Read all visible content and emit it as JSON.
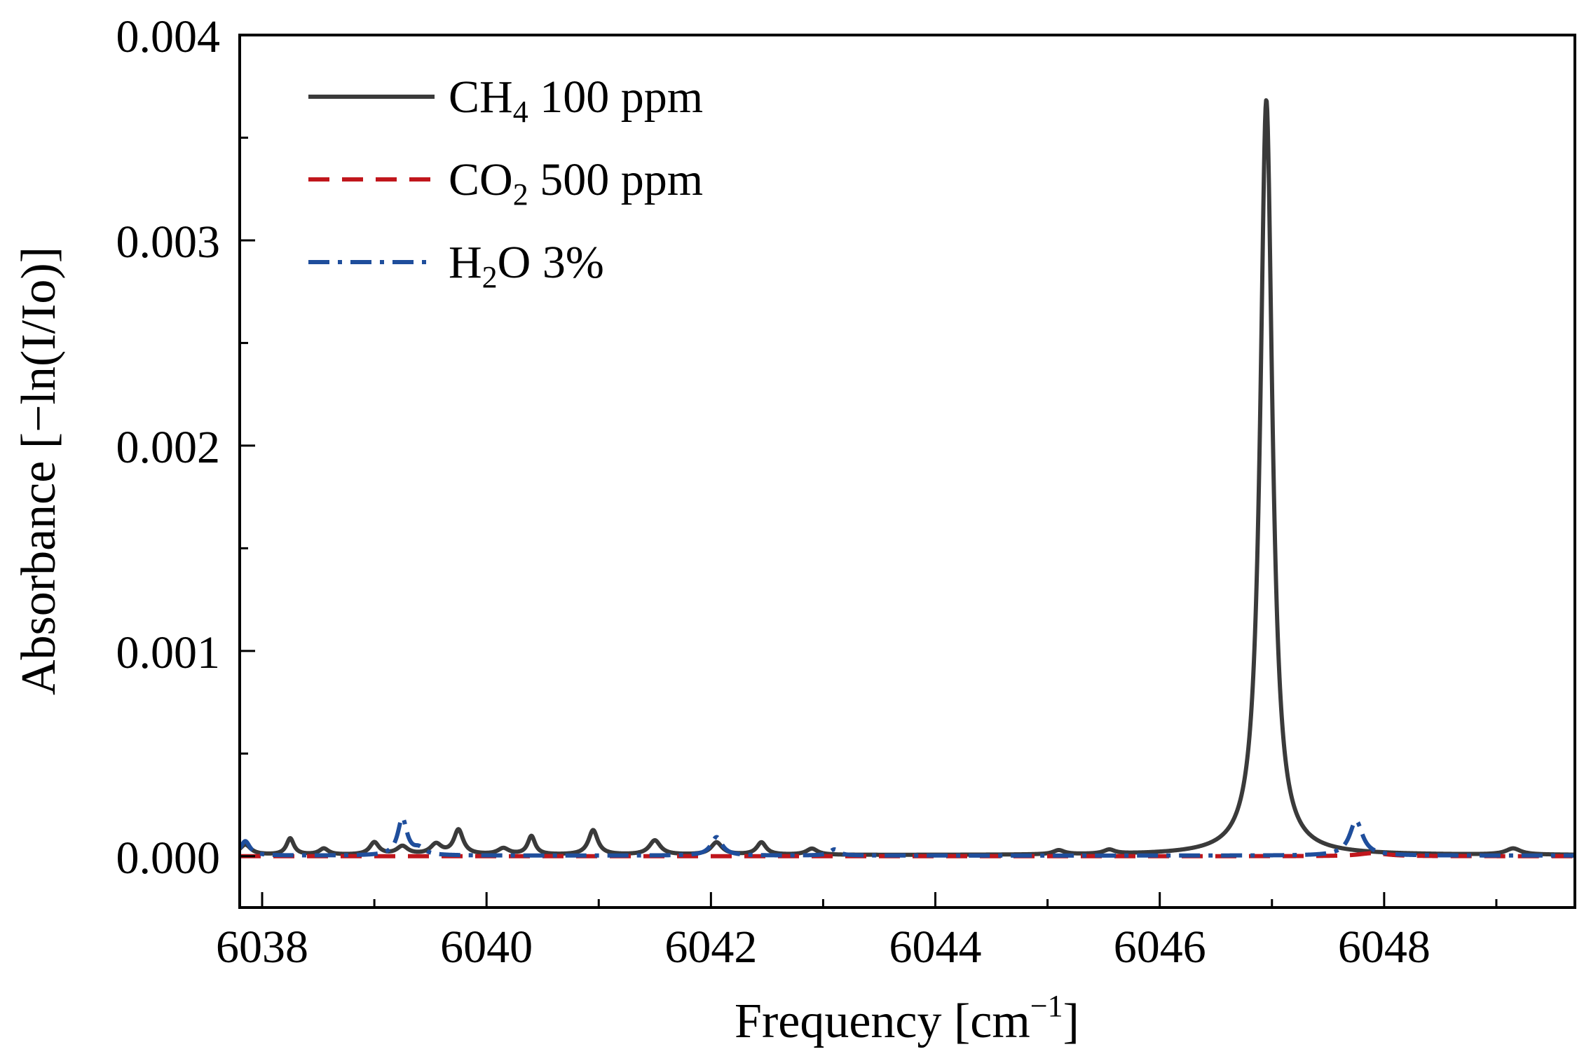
{
  "chart_data": {
    "type": "line",
    "xlabel": {
      "main": "Frequency [cm",
      "sup": "−1",
      "close": "]"
    },
    "ylabel": "Absorbance [−ln(I/Io)]",
    "xlim": [
      6037.8,
      6049.7
    ],
    "ylim": [
      -0.00025,
      0.004
    ],
    "x_ticks": [
      6038,
      6040,
      6042,
      6044,
      6046,
      6048
    ],
    "x_tick_labels": [
      "6038",
      "6040",
      "6042",
      "6044",
      "6046",
      "6048"
    ],
    "x_minor_ticks": [
      6039,
      6041,
      6043,
      6045,
      6047,
      6049
    ],
    "y_ticks": [
      0.0,
      0.001,
      0.002,
      0.003,
      0.004
    ],
    "y_tick_labels": [
      "0.000",
      "0.001",
      "0.002",
      "0.003",
      "0.004"
    ],
    "y_minor_ticks": [
      0.0005,
      0.0015,
      0.0025,
      0.0035
    ],
    "legend_position": "top-left",
    "series": [
      {
        "name": "CH4 100 ppm",
        "legend": {
          "prefix": "CH",
          "sub": "4",
          "suffix": " 100 ppm"
        },
        "color": "#3a3a3a",
        "style": "solid",
        "baseline": 5e-06,
        "peaks": [
          {
            "x": 6037.85,
            "height": 5e-05,
            "width": 0.06
          },
          {
            "x": 6038.25,
            "height": 8e-05,
            "width": 0.04
          },
          {
            "x": 6038.55,
            "height": 3e-05,
            "width": 0.05
          },
          {
            "x": 6039.0,
            "height": 6e-05,
            "width": 0.05
          },
          {
            "x": 6039.25,
            "height": 4e-05,
            "width": 0.06
          },
          {
            "x": 6039.55,
            "height": 5e-05,
            "width": 0.06
          },
          {
            "x": 6039.75,
            "height": 0.00012,
            "width": 0.05
          },
          {
            "x": 6040.15,
            "height": 3e-05,
            "width": 0.06
          },
          {
            "x": 6040.4,
            "height": 9e-05,
            "width": 0.04
          },
          {
            "x": 6040.95,
            "height": 0.00012,
            "width": 0.05
          },
          {
            "x": 6041.5,
            "height": 7e-05,
            "width": 0.06
          },
          {
            "x": 6042.05,
            "height": 6e-05,
            "width": 0.06
          },
          {
            "x": 6042.45,
            "height": 6e-05,
            "width": 0.05
          },
          {
            "x": 6042.9,
            "height": 3e-05,
            "width": 0.06
          },
          {
            "x": 6045.1,
            "height": 2e-05,
            "width": 0.06
          },
          {
            "x": 6045.55,
            "height": 2e-05,
            "width": 0.06
          },
          {
            "x": 6046.95,
            "height": 0.00368,
            "width": 0.065
          },
          {
            "x": 6049.15,
            "height": 3e-05,
            "width": 0.08
          }
        ]
      },
      {
        "name": "CO2 500 ppm",
        "legend": {
          "prefix": "CO",
          "sub": "2",
          "suffix": " 500 ppm"
        },
        "color": "#c0161c",
        "style": "dashed",
        "baseline": 0.0,
        "peaks": [
          {
            "x": 6047.9,
            "height": 1.5e-05,
            "width": 0.15
          }
        ]
      },
      {
        "name": "H2O 3%",
        "legend": {
          "prefix": "H",
          "sub": "2",
          "suffix": "O 3%"
        },
        "color": "#1f4e9c",
        "style": "dashdot",
        "baseline": 3e-06,
        "peaks": [
          {
            "x": 6037.85,
            "height": 7e-05,
            "width": 0.05
          },
          {
            "x": 6039.25,
            "height": 0.00018,
            "width": 0.05
          },
          {
            "x": 6039.4,
            "height": 3e-05,
            "width": 0.06
          },
          {
            "x": 6042.05,
            "height": 9e-05,
            "width": 0.06
          },
          {
            "x": 6043.1,
            "height": 3e-05,
            "width": 0.05
          },
          {
            "x": 6047.75,
            "height": 0.00017,
            "width": 0.07
          }
        ]
      }
    ]
  }
}
